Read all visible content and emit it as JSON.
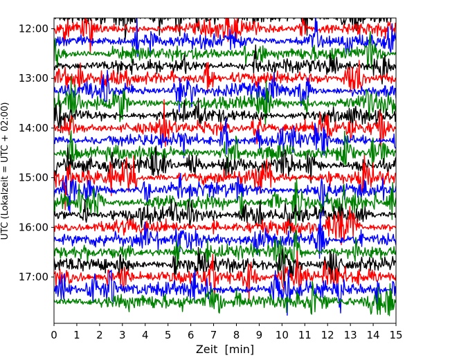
{
  "chart_data": {
    "type": "line",
    "title": "",
    "xlabel": "Zeit  [min]",
    "ylabel": "UTC (Lokalzeit = UTC + 02:00)",
    "xlim": [
      0,
      15
    ],
    "ylim_time": [
      "11:47",
      "17:56"
    ],
    "x_ticks": [
      0,
      1,
      2,
      3,
      4,
      5,
      6,
      7,
      8,
      9,
      10,
      11,
      12,
      13,
      14,
      15
    ],
    "y_ticks": [
      "12:00",
      "13:00",
      "14:00",
      "15:00",
      "16:00",
      "17:00"
    ],
    "y_direction": "downward (time increases toward bottom)",
    "trace_spacing_minutes": 15,
    "trace_duration_minutes": 15,
    "color_cycle": [
      "#000000",
      "#ff0000",
      "#0000ff",
      "#008000"
    ],
    "grid": false,
    "legend": "none",
    "series": [
      {
        "start_utc": "11:45",
        "color": "#000000"
      },
      {
        "start_utc": "12:00",
        "color": "#ff0000"
      },
      {
        "start_utc": "12:15",
        "color": "#0000ff"
      },
      {
        "start_utc": "12:30",
        "color": "#008000"
      },
      {
        "start_utc": "12:45",
        "color": "#000000"
      },
      {
        "start_utc": "13:00",
        "color": "#ff0000"
      },
      {
        "start_utc": "13:15",
        "color": "#0000ff"
      },
      {
        "start_utc": "13:30",
        "color": "#008000"
      },
      {
        "start_utc": "13:45",
        "color": "#000000"
      },
      {
        "start_utc": "14:00",
        "color": "#ff0000"
      },
      {
        "start_utc": "14:15",
        "color": "#0000ff"
      },
      {
        "start_utc": "14:30",
        "color": "#008000"
      },
      {
        "start_utc": "14:45",
        "color": "#000000"
      },
      {
        "start_utc": "15:00",
        "color": "#ff0000"
      },
      {
        "start_utc": "15:15",
        "color": "#0000ff"
      },
      {
        "start_utc": "15:30",
        "color": "#008000"
      },
      {
        "start_utc": "15:45",
        "color": "#000000"
      },
      {
        "start_utc": "16:00",
        "color": "#ff0000"
      },
      {
        "start_utc": "16:15",
        "color": "#0000ff"
      },
      {
        "start_utc": "16:30",
        "color": "#008000"
      },
      {
        "start_utc": "16:45",
        "color": "#000000"
      },
      {
        "start_utc": "17:00",
        "color": "#ff0000"
      },
      {
        "start_utc": "17:15",
        "color": "#0000ff"
      },
      {
        "start_utc": "17:30",
        "color": "#008000"
      }
    ]
  }
}
